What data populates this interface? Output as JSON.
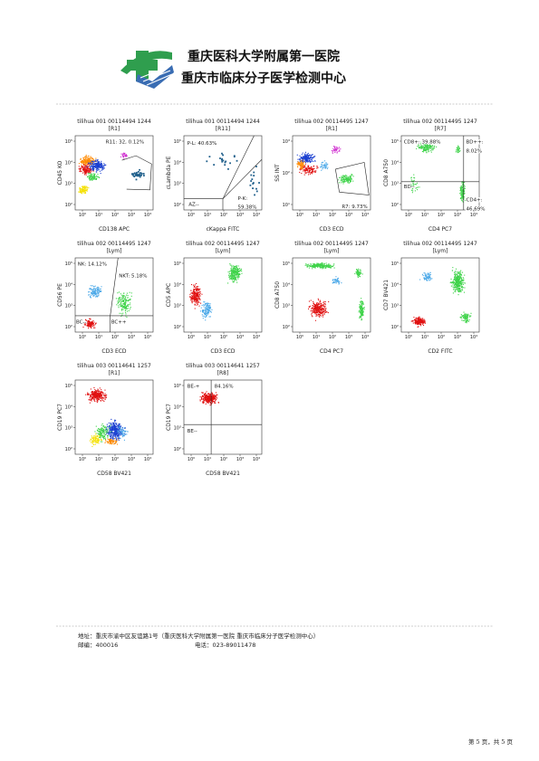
{
  "header": {
    "hospital": "重庆医科大学附属第一医院",
    "center": "重庆市临床分子医学检测中心"
  },
  "plots": [
    {
      "title": "tilihua 001 00114494 1244",
      "gate": "[R1]",
      "x_label": "CD138 APC",
      "y_label": "CD45 KO",
      "x_ticks": [
        "10⁰",
        "10¹",
        "10²",
        "10³",
        "10⁴"
      ],
      "y_ticks": [
        "10²",
        "10³",
        "10⁴",
        "10⁵"
      ],
      "gate_labels": [
        "R11: 32, 0.12%"
      ]
    },
    {
      "title": "tilihua 001 00114494 1244",
      "gate": "[R11]",
      "x_label": "cKappa FITC",
      "y_label": "cLambda PE",
      "x_ticks": [
        "10⁰",
        "10¹",
        "10²",
        "10³",
        "10⁴"
      ],
      "y_ticks": [
        "10²",
        "10³",
        "10⁴",
        "10⁵"
      ],
      "gate_labels": [
        "P-L: 40.63%",
        "AZ--",
        "P-K:",
        "59.38%"
      ]
    },
    {
      "title": "tilihua 002 00114495 1247",
      "gate": "[R1]",
      "x_label": "CD3 ECD",
      "y_label": "SS INT",
      "x_ticks": [
        "10⁰",
        "10¹",
        "10²",
        "10³",
        "10⁴"
      ],
      "y_ticks": [
        "10¹",
        "10²",
        "10³"
      ],
      "gate_labels": [
        "R7: 9.73%"
      ]
    },
    {
      "title": "tilihua 002 00114495 1247",
      "gate": "[R7]",
      "x_label": "CD4 PC7",
      "y_label": "CD8 A750",
      "x_ticks": [
        "10⁰",
        "10¹",
        "10²",
        "10³",
        "10⁴"
      ],
      "y_ticks": [
        "10²",
        "10³",
        "10⁴",
        "10⁵"
      ],
      "gate_labels": [
        "CD8+: 39.88%",
        "BD++:",
        "8.02%",
        "BD--",
        "CD4+:",
        "46.69%"
      ]
    },
    {
      "title": "tilihua 002 00114495 1247",
      "gate": "[Lym]",
      "x_label": "CD3 ECD",
      "y_label": "CD56 PE",
      "x_ticks": [
        "10⁰",
        "10¹",
        "10²",
        "10³",
        "10⁴"
      ],
      "y_ticks": [
        "10²",
        "10³",
        "10⁴",
        "10⁵"
      ],
      "gate_labels": [
        "NK: 14.12%",
        "NKT: 5.18%",
        "BC--",
        "BC++"
      ]
    },
    {
      "title": "tilihua 002 00114495 1247",
      "gate": "[Lym]",
      "x_label": "CD3 ECD",
      "y_label": "CD5 APC",
      "x_ticks": [
        "10⁰",
        "10¹",
        "10²",
        "10³",
        "10⁴"
      ],
      "y_ticks": [
        "10²",
        "10³",
        "10⁴",
        "10⁵"
      ],
      "gate_labels": []
    },
    {
      "title": "tilihua 002 00114495 1247",
      "gate": "[Lym]",
      "x_label": "CD4 PC7",
      "y_label": "CD8 A750",
      "x_ticks": [
        "10⁰",
        "10¹",
        "10²",
        "10³",
        "10⁴"
      ],
      "y_ticks": [
        "10²",
        "10³",
        "10⁴",
        "10⁵"
      ],
      "gate_labels": []
    },
    {
      "title": "tilihua 002 00114495 1247",
      "gate": "[Lym]",
      "x_label": "CD2 FITC",
      "y_label": "CD7 BV421",
      "x_ticks": [
        "10⁰",
        "10¹",
        "10²",
        "10³",
        "10⁴"
      ],
      "y_ticks": [
        "10²",
        "10³",
        "10⁴",
        "10⁵"
      ],
      "gate_labels": []
    },
    {
      "title": "tilihua 003 00114641 1257",
      "gate": "[R1]",
      "x_label": "CD58 BV421",
      "y_label": "CD19 PC7",
      "x_ticks": [
        "10⁰",
        "10¹",
        "10²",
        "10³",
        "10⁴"
      ],
      "y_ticks": [
        "10²",
        "10³",
        "10⁴",
        "10⁵"
      ],
      "gate_labels": []
    },
    {
      "title": "tilihua 003 00114641 1257",
      "gate": "[R8]",
      "x_label": "CD58 BV421",
      "y_label": "CD19 PC7",
      "x_ticks": [
        "10⁰",
        "10¹",
        "10²",
        "10³",
        "10⁴"
      ],
      "y_ticks": [
        "10²",
        "10³",
        "10⁴",
        "10⁵"
      ],
      "gate_labels": [
        "BE-+",
        "84.16%",
        "BE--"
      ]
    }
  ],
  "footer": {
    "address": "地址：重庆市渝中区友谊路1号（重庆医科大学附属第一医院 重庆市临床分子医学检测中心）",
    "postcode": "邮编：400016",
    "phone": "电话：023-89011478"
  },
  "page_number": "第 5 页，共 5 页"
}
